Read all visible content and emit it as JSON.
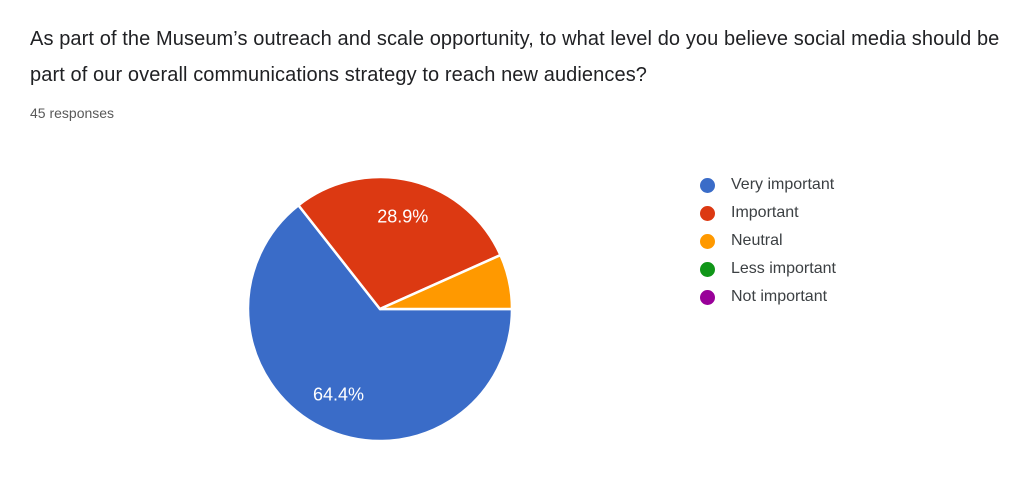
{
  "header": {
    "title": "As part of the Museum’s outreach and scale opportunity, to what level do you believe social media should be part of our overall communications strategy to reach new audiences?",
    "response_count": "45 responses"
  },
  "chart_data": {
    "type": "pie",
    "title": "",
    "legend_position": "right",
    "values_are_percent": true,
    "start_angle_clockwise_from_east_deg": 0,
    "slice_label_color": "#ffffff",
    "series": [
      {
        "name": "Very important",
        "value": 64.4,
        "label": "64.4%",
        "color": "#3a6cc8"
      },
      {
        "name": "Important",
        "value": 28.9,
        "label": "28.9%",
        "color": "#dc3912"
      },
      {
        "name": "Neutral",
        "value": 6.7,
        "label": "",
        "color": "#ff9900"
      },
      {
        "name": "Less important",
        "value": 0,
        "label": "",
        "color": "#109618"
      },
      {
        "name": "Not important",
        "value": 0,
        "label": "",
        "color": "#990099"
      }
    ]
  }
}
